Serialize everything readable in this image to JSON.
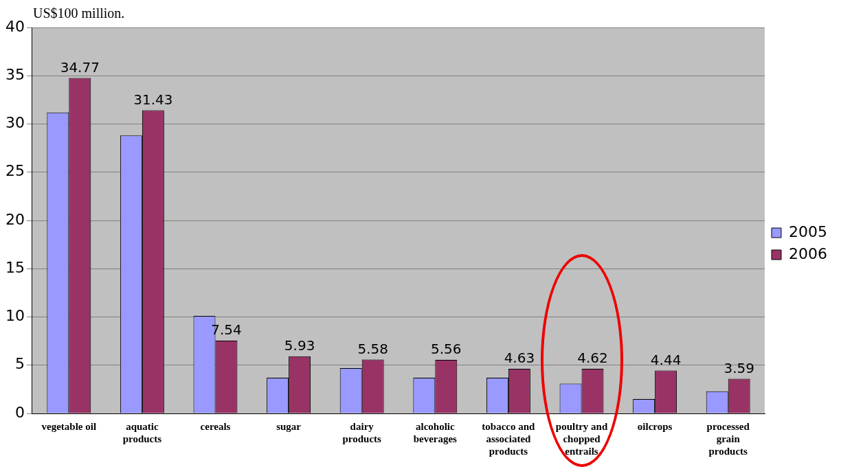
{
  "chart_data": {
    "type": "bar",
    "ylabel": "US$100 million.",
    "categories": [
      "vegetable oil",
      "aquatic products",
      "cereals",
      "sugar",
      "dairy products",
      "alcoholic beverages",
      "tobacco and associated products",
      "poultry and chopped entrails",
      "oilcrops",
      "processed grain products"
    ],
    "series": [
      {
        "name": "2005",
        "color": "#9999ff",
        "values": [
          31.2,
          28.8,
          10.1,
          3.7,
          4.7,
          3.7,
          3.7,
          3.1,
          1.5,
          2.3
        ]
      },
      {
        "name": "2006",
        "color": "#993366",
        "values": [
          34.77,
          31.43,
          7.54,
          5.93,
          5.58,
          5.56,
          4.63,
          4.62,
          4.44,
          3.59
        ],
        "value_labels": [
          "34.77",
          "31.43",
          "7.54",
          "5.93",
          "5.58",
          "5.56",
          "4.63",
          "4.62",
          "4.44",
          "3.59"
        ]
      }
    ],
    "ylim": [
      0,
      40
    ],
    "yticks": [
      0,
      5,
      10,
      15,
      20,
      25,
      30,
      35,
      40
    ],
    "grid": "y",
    "legend": "right"
  }
}
